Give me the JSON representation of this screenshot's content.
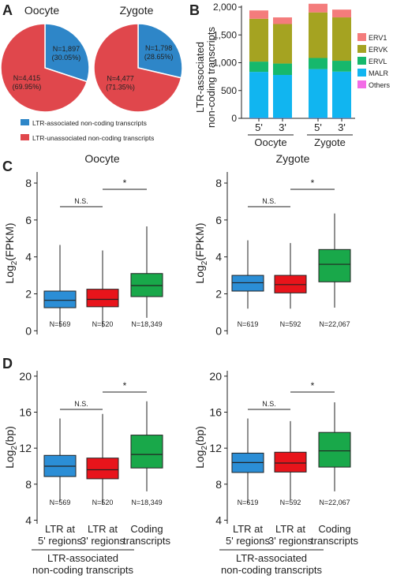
{
  "panel_letters": [
    "A",
    "B",
    "C",
    "D"
  ],
  "colors": {
    "ltr_assoc": "#2e86c8",
    "ltr_unassoc": "#e0474c",
    "box_blue": "#2b8ed6",
    "box_red": "#e8141b",
    "box_green": "#19a84a",
    "ERV1": "#f47c7c",
    "ERVK": "#a5a321",
    "ERVL": "#16b86c",
    "MALR": "#11b5f0",
    "Others": "#f36ce6"
  },
  "chart_data": [
    {
      "id": "A_oocyte",
      "type": "pie",
      "title": "Oocyte",
      "slices": [
        {
          "name": "LTR-associated non-coding transcripts",
          "value": 1897,
          "label_n": "N=1,897",
          "label_pct": "(30.05%)"
        },
        {
          "name": "LTR-unassociated non-coding transcripts",
          "value": 4415,
          "label_n": "N=4,415",
          "label_pct": "(69.95%)"
        }
      ]
    },
    {
      "id": "A_zygote",
      "type": "pie",
      "title": "Zygote",
      "slices": [
        {
          "name": "LTR-associated non-coding transcripts",
          "value": 1798,
          "label_n": "N=1,798",
          "label_pct": "(28.65%)"
        },
        {
          "name": "LTR-unassociated non-coding transcripts",
          "value": 4477,
          "label_n": "N=4,477",
          "label_pct": "(71.35%)"
        }
      ],
      "legend": [
        "LTR-associated non-coding transcripts",
        "LTR-unassociated non-coding transcripts"
      ]
    },
    {
      "id": "B",
      "type": "bar",
      "stacked": true,
      "ylabel_line1": "LTR-associated",
      "ylabel_line2": "non-coding transcripts",
      "ylim": [
        0,
        2000
      ],
      "yticks": [
        0,
        500,
        1000,
        1500,
        2000
      ],
      "ytick_labels": [
        "0",
        "500",
        "1,000",
        "1,500",
        "2,000"
      ],
      "categories": [
        "5'",
        "3'",
        "5'",
        "3'"
      ],
      "groups": [
        "Oocyte",
        "Zygote"
      ],
      "series": [
        {
          "name": "Others",
          "values": [
            5,
            5,
            5,
            5
          ]
        },
        {
          "name": "MALR",
          "values": [
            830,
            775,
            880,
            835
          ]
        },
        {
          "name": "ERVL",
          "values": [
            185,
            205,
            200,
            195
          ]
        },
        {
          "name": "ERVK",
          "values": [
            770,
            710,
            820,
            780
          ]
        },
        {
          "name": "ERV1",
          "values": [
            150,
            120,
            155,
            140
          ]
        }
      ],
      "legend": [
        "ERV1",
        "ERVK",
        "ERVL",
        "MALR",
        "Others"
      ]
    },
    {
      "id": "C_oocyte",
      "type": "box",
      "title": "Oocyte",
      "ylabel": "Log2(FPKM)",
      "ylim": [
        -0.2,
        8.6
      ],
      "yticks": [
        0,
        2,
        4,
        6,
        8
      ],
      "boxes": [
        {
          "min": 0.2,
          "q1": 1.25,
          "median": 1.65,
          "q3": 2.15,
          "max": 4.65,
          "n": "N=569"
        },
        {
          "min": 0.2,
          "q1": 1.3,
          "median": 1.7,
          "q3": 2.25,
          "max": 4.35,
          "n": "N=520"
        },
        {
          "min": 0.7,
          "q1": 1.85,
          "median": 2.45,
          "q3": 3.1,
          "max": 5.65,
          "n": "N=18,349"
        }
      ],
      "sig": [
        {
          "label": "N.S.",
          "from": 0,
          "to": 1
        },
        {
          "label": "*",
          "from": 1,
          "to": 2
        }
      ]
    },
    {
      "id": "C_zygote",
      "type": "box",
      "title": "Zygote",
      "ylabel": "Log2(FPKM)",
      "ylim": [
        -0.2,
        8.6
      ],
      "yticks": [
        0,
        2,
        4,
        6,
        8
      ],
      "boxes": [
        {
          "min": 1.2,
          "q1": 2.15,
          "median": 2.6,
          "q3": 3.0,
          "max": 4.9,
          "n": "N=619"
        },
        {
          "min": 1.2,
          "q1": 2.05,
          "median": 2.5,
          "q3": 3.0,
          "max": 4.75,
          "n": "N=592"
        },
        {
          "min": 1.25,
          "q1": 2.65,
          "median": 3.6,
          "q3": 4.4,
          "max": 6.35,
          "n": "N=22,067"
        }
      ],
      "sig": [
        {
          "label": "N.S.",
          "from": 0,
          "to": 1
        },
        {
          "label": "*",
          "from": 1,
          "to": 2
        }
      ]
    },
    {
      "id": "D_oocyte",
      "type": "box",
      "ylabel": "Log2(bp)",
      "ylim": [
        3.6,
        20.6
      ],
      "yticks": [
        4,
        8,
        12,
        16,
        20
      ],
      "boxes": [
        {
          "min": 6.1,
          "q1": 8.85,
          "median": 10.0,
          "q3": 11.2,
          "max": 15.3,
          "n": "N=569"
        },
        {
          "min": 5.7,
          "q1": 8.6,
          "median": 9.6,
          "q3": 10.9,
          "max": 15.8,
          "n": "N=520"
        },
        {
          "min": 7.2,
          "q1": 9.8,
          "median": 11.3,
          "q3": 13.45,
          "max": 17.2,
          "n": "N=18,349"
        }
      ],
      "sig": [
        {
          "label": "N.S.",
          "from": 0,
          "to": 1
        },
        {
          "label": "*",
          "from": 1,
          "to": 2
        }
      ]
    },
    {
      "id": "D_zygote",
      "type": "box",
      "ylabel": "Log2(bp)",
      "ylim": [
        3.6,
        20.6
      ],
      "yticks": [
        4,
        8,
        12,
        16,
        20
      ],
      "boxes": [
        {
          "min": 5.9,
          "q1": 9.3,
          "median": 10.4,
          "q3": 11.45,
          "max": 15.3,
          "n": "N=619"
        },
        {
          "min": 6.3,
          "q1": 9.35,
          "median": 10.35,
          "q3": 11.55,
          "max": 15.0,
          "n": "N=592"
        },
        {
          "min": 7.2,
          "q1": 9.9,
          "median": 11.7,
          "q3": 13.75,
          "max": 17.1,
          "n": "N=22,067"
        }
      ],
      "sig": [
        {
          "label": "N.S.",
          "from": 0,
          "to": 1
        },
        {
          "label": "*",
          "from": 1,
          "to": 2
        }
      ]
    }
  ],
  "bottom_labels": {
    "cats": [
      [
        "LTR at",
        "5' regions"
      ],
      [
        "LTR at",
        "3' regions"
      ],
      [
        "Coding",
        "transcripts"
      ]
    ],
    "group": [
      "LTR-associated",
      "non-coding transcripts"
    ]
  }
}
